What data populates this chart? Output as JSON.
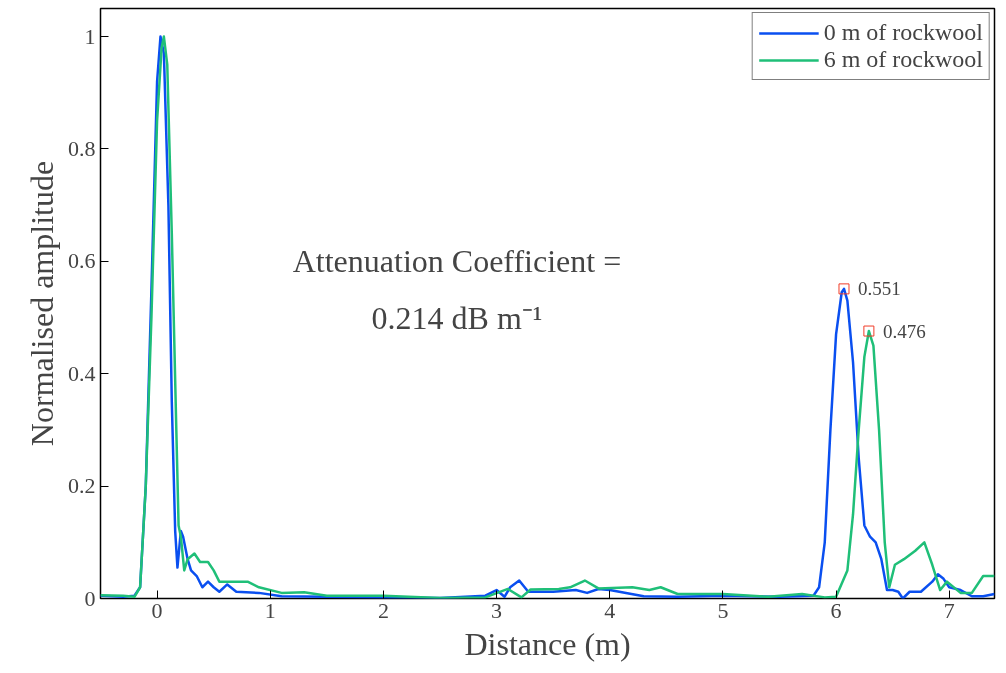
{
  "chart_data": {
    "type": "line",
    "xlabel": "Distance (m)",
    "ylabel": "Normalised amplitude",
    "xlim": [
      -0.5,
      7.4
    ],
    "ylim": [
      0,
      1.05
    ],
    "xticks": [
      0,
      1,
      2,
      3,
      4,
      5,
      6,
      7
    ],
    "yticks": [
      0,
      0.2,
      0.4,
      0.6,
      0.8,
      1
    ],
    "grid": false,
    "legend": "top right",
    "series": [
      {
        "name": "0 m of rockwool",
        "color": "#0a4ff0",
        "x": [
          -0.5,
          -0.3,
          -0.2,
          -0.15,
          -0.1,
          -0.05,
          0,
          0.03,
          0.06,
          0.1,
          0.13,
          0.16,
          0.18,
          0.21,
          0.23,
          0.27,
          0.3,
          0.35,
          0.4,
          0.45,
          0.5,
          0.55,
          0.62,
          0.7,
          0.9,
          1.1,
          1.5,
          2,
          2.5,
          2.9,
          3.0,
          3.07,
          3.12,
          3.2,
          3.28,
          3.5,
          3.7,
          3.8,
          3.9,
          4.0,
          4.3,
          4.6,
          5,
          5.5,
          5.8,
          5.85,
          5.9,
          5.95,
          6.0,
          6.05,
          6.07,
          6.1,
          6.15,
          6.2,
          6.25,
          6.3,
          6.35,
          6.4,
          6.45,
          6.5,
          6.55,
          6.59,
          6.65,
          6.75,
          6.85,
          6.9,
          6.95,
          7.0,
          7.1,
          7.2,
          7.3,
          7.4
        ],
        "values": [
          0.005,
          0.003,
          0.005,
          0.02,
          0.2,
          0.55,
          0.92,
          1.0,
          0.97,
          0.7,
          0.35,
          0.12,
          0.055,
          0.12,
          0.11,
          0.07,
          0.05,
          0.04,
          0.02,
          0.03,
          0.02,
          0.012,
          0.025,
          0.012,
          0.01,
          0.004,
          0.003,
          0.002,
          0.001,
          0.005,
          0.015,
          0.003,
          0.02,
          0.032,
          0.012,
          0.012,
          0.015,
          0.01,
          0.017,
          0.015,
          0.004,
          0.003,
          0.005,
          0.003,
          0.005,
          0.02,
          0.1,
          0.3,
          0.47,
          0.545,
          0.551,
          0.53,
          0.42,
          0.25,
          0.13,
          0.11,
          0.1,
          0.07,
          0.015,
          0.015,
          0.012,
          0.0,
          0.012,
          0.012,
          0.03,
          0.043,
          0.035,
          0.02,
          0.015,
          0.004,
          0.004,
          0.008
        ]
      },
      {
        "name": "6 m of rockwool",
        "color": "#1fbf78",
        "x": [
          -0.5,
          -0.3,
          -0.2,
          -0.15,
          -0.1,
          -0.05,
          0,
          0.04,
          0.06,
          0.09,
          0.13,
          0.17,
          0.19,
          0.21,
          0.24,
          0.27,
          0.33,
          0.38,
          0.45,
          0.5,
          0.55,
          0.7,
          0.8,
          0.9,
          1.1,
          1.3,
          1.5,
          2.0,
          2.5,
          2.9,
          3.1,
          3.22,
          3.3,
          3.55,
          3.65,
          3.78,
          3.9,
          4.2,
          4.35,
          4.45,
          4.6,
          5,
          5.4,
          5.7,
          5.9,
          6.0,
          6.1,
          6.15,
          6.2,
          6.25,
          6.29,
          6.33,
          6.38,
          6.43,
          6.47,
          6.52,
          6.6,
          6.7,
          6.78,
          6.85,
          6.92,
          6.98,
          7.1,
          7.2,
          7.3,
          7.4
        ],
        "values": [
          0.006,
          0.005,
          0.003,
          0.02,
          0.2,
          0.5,
          0.85,
          0.98,
          1.0,
          0.95,
          0.65,
          0.3,
          0.13,
          0.11,
          0.05,
          0.07,
          0.08,
          0.065,
          0.065,
          0.05,
          0.03,
          0.03,
          0.03,
          0.02,
          0.01,
          0.011,
          0.005,
          0.005,
          0.001,
          0.002,
          0.017,
          0.002,
          0.016,
          0.017,
          0.02,
          0.032,
          0.018,
          0.02,
          0.015,
          0.02,
          0.008,
          0.008,
          0.003,
          0.008,
          0.002,
          0.003,
          0.05,
          0.15,
          0.3,
          0.43,
          0.476,
          0.45,
          0.3,
          0.1,
          0.02,
          0.06,
          0.07,
          0.085,
          0.1,
          0.06,
          0.015,
          0.03,
          0.01,
          0.01,
          0.04,
          0.04
        ]
      }
    ],
    "annotations": [
      "Attenuation Coefficient =\n0.214 dB m⁻¹",
      {
        "text": "0.551",
        "x": 6.07,
        "y": 0.551
      },
      {
        "text": "0.476",
        "x": 6.29,
        "y": 0.476
      }
    ]
  }
}
